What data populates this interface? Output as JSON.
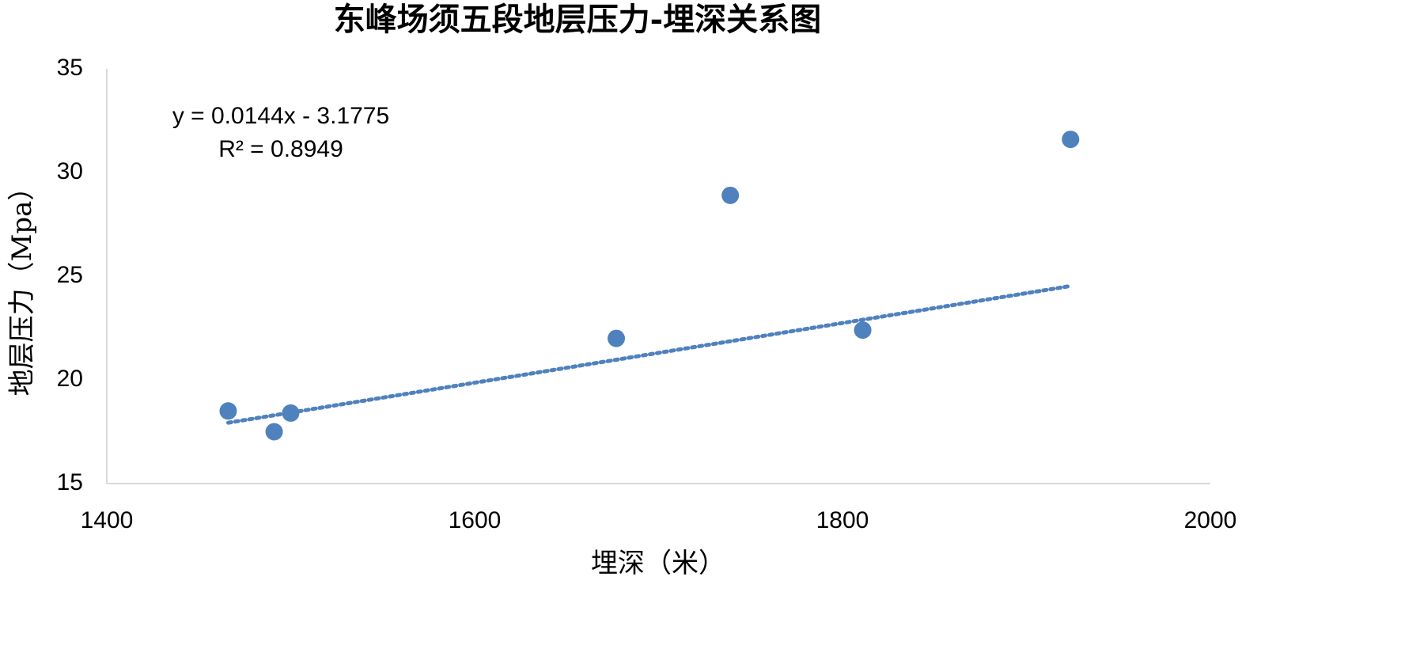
{
  "chart_data": {
    "type": "scatter",
    "title": "东峰场须五段地层压力-埋深关系图",
    "x_label": "埋深（米）",
    "y_label": "地层压力（Mpa）",
    "series": [
      {
        "name": "地层压力",
        "color": "#4f81bd",
        "x": [
          1466,
          1491,
          1500,
          1677,
          1739,
          1811,
          1924
        ],
        "values": [
          18.5,
          17.5,
          18.4,
          22.0,
          28.9,
          22.4,
          31.6
        ]
      }
    ],
    "trendline": {
      "slope": 0.0144,
      "intercept": -3.1775,
      "equation": "y = 0.0144x - 3.1775",
      "r2_label": "R² = 0.8949",
      "color": "#4f81bd"
    },
    "xlim": [
      1400,
      2000
    ],
    "xticks": [
      1400,
      1600,
      1800,
      2000
    ],
    "ylim": [
      15,
      35
    ],
    "yticks": [
      15,
      20,
      25,
      30,
      35
    ],
    "grid": false
  }
}
